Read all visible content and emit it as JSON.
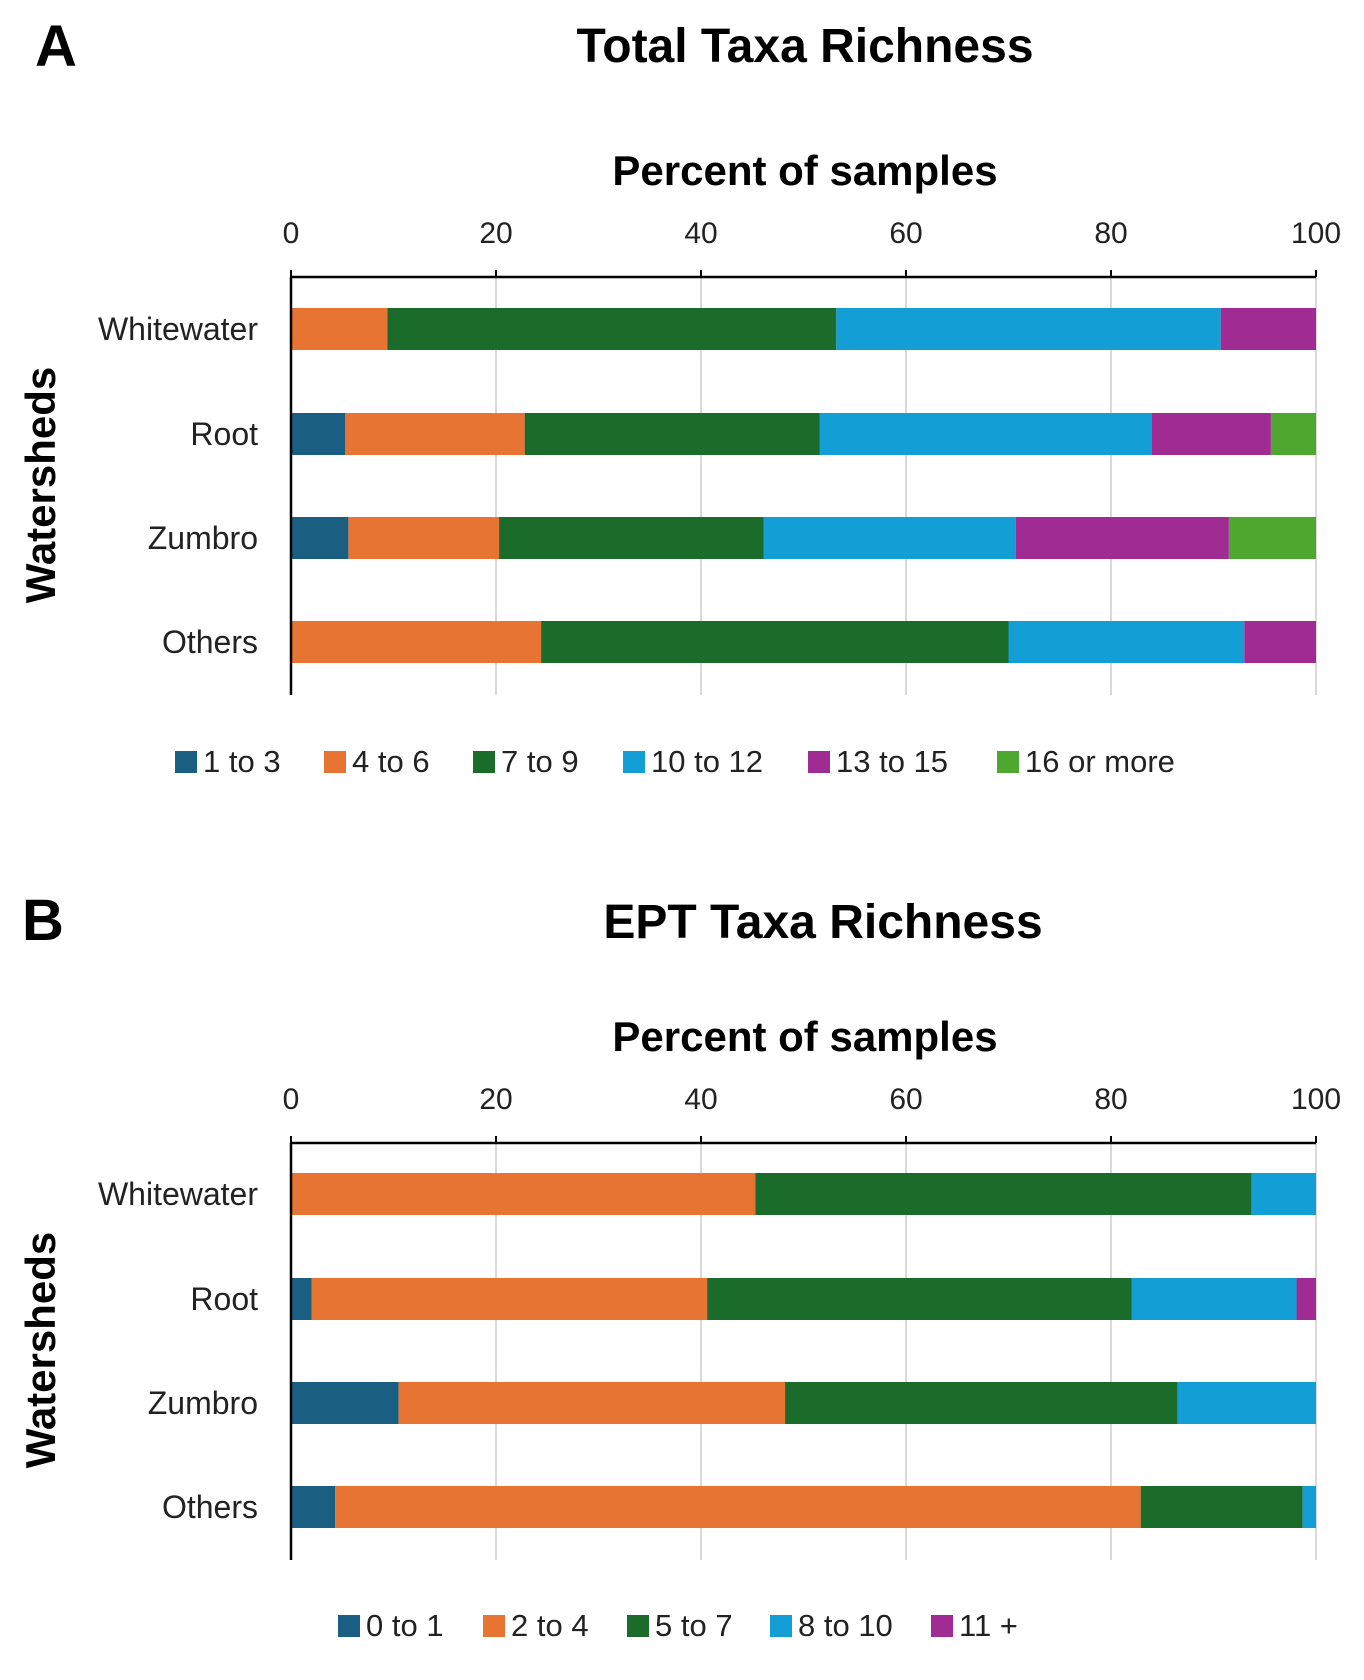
{
  "chart_data": [
    {
      "type": "bar",
      "orientation": "horizontal",
      "stacked": true,
      "panel": "A",
      "title": "Total Taxa Richness",
      "xlabel": "Percent of samples",
      "ylabel": "Watersheds",
      "xlim": [
        0,
        100
      ],
      "xticks": [
        "0",
        "20",
        "40",
        "60",
        "80",
        "100"
      ],
      "grid": true,
      "legend_position": "bottom",
      "categories": [
        "Whitewater",
        "Root",
        "Zumbro",
        "Others"
      ],
      "series": [
        {
          "name": "1 to 3",
          "color": "#1a5e82",
          "values": [
            0,
            5.3,
            5.6,
            0
          ]
        },
        {
          "name": "4 to 6",
          "color": "#e87433",
          "values": [
            9.4,
            17.5,
            14.7,
            24.4
          ]
        },
        {
          "name": "7 to 9",
          "color": "#1b6b2a",
          "values": [
            43.8,
            28.8,
            25.8,
            45.6
          ]
        },
        {
          "name": "10 to 12",
          "color": "#139ed5",
          "values": [
            37.5,
            32.4,
            24.6,
            23.0
          ]
        },
        {
          "name": "13 to 15",
          "color": "#a02b93",
          "values": [
            9.3,
            11.6,
            20.8,
            7.0
          ]
        },
        {
          "name": "16 or more",
          "color": "#4ea72e",
          "values": [
            0,
            4.4,
            8.5,
            0
          ]
        }
      ]
    },
    {
      "type": "bar",
      "orientation": "horizontal",
      "stacked": true,
      "panel": "B",
      "title": "EPT Taxa Richness",
      "xlabel": "Percent of samples",
      "ylabel": "Watersheds",
      "xlim": [
        0,
        100
      ],
      "xticks": [
        "0",
        "20",
        "40",
        "60",
        "80",
        "100"
      ],
      "grid": true,
      "legend_position": "bottom",
      "categories": [
        "Whitewater",
        "Root",
        "Zumbro",
        "Others"
      ],
      "series": [
        {
          "name": "0 to 1",
          "color": "#1a5e82",
          "values": [
            0,
            2.0,
            10.5,
            4.3
          ]
        },
        {
          "name": "2 to 4",
          "color": "#e87433",
          "values": [
            45.3,
            38.6,
            37.7,
            78.6
          ]
        },
        {
          "name": "5 to 7",
          "color": "#1b6b2a",
          "values": [
            48.4,
            41.4,
            38.3,
            15.8
          ]
        },
        {
          "name": "8 to 10",
          "color": "#139ed5",
          "values": [
            6.3,
            16.1,
            13.5,
            1.3
          ]
        },
        {
          "name": "11 +",
          "color": "#a02b93",
          "values": [
            0,
            1.9,
            0,
            0
          ]
        }
      ]
    }
  ]
}
